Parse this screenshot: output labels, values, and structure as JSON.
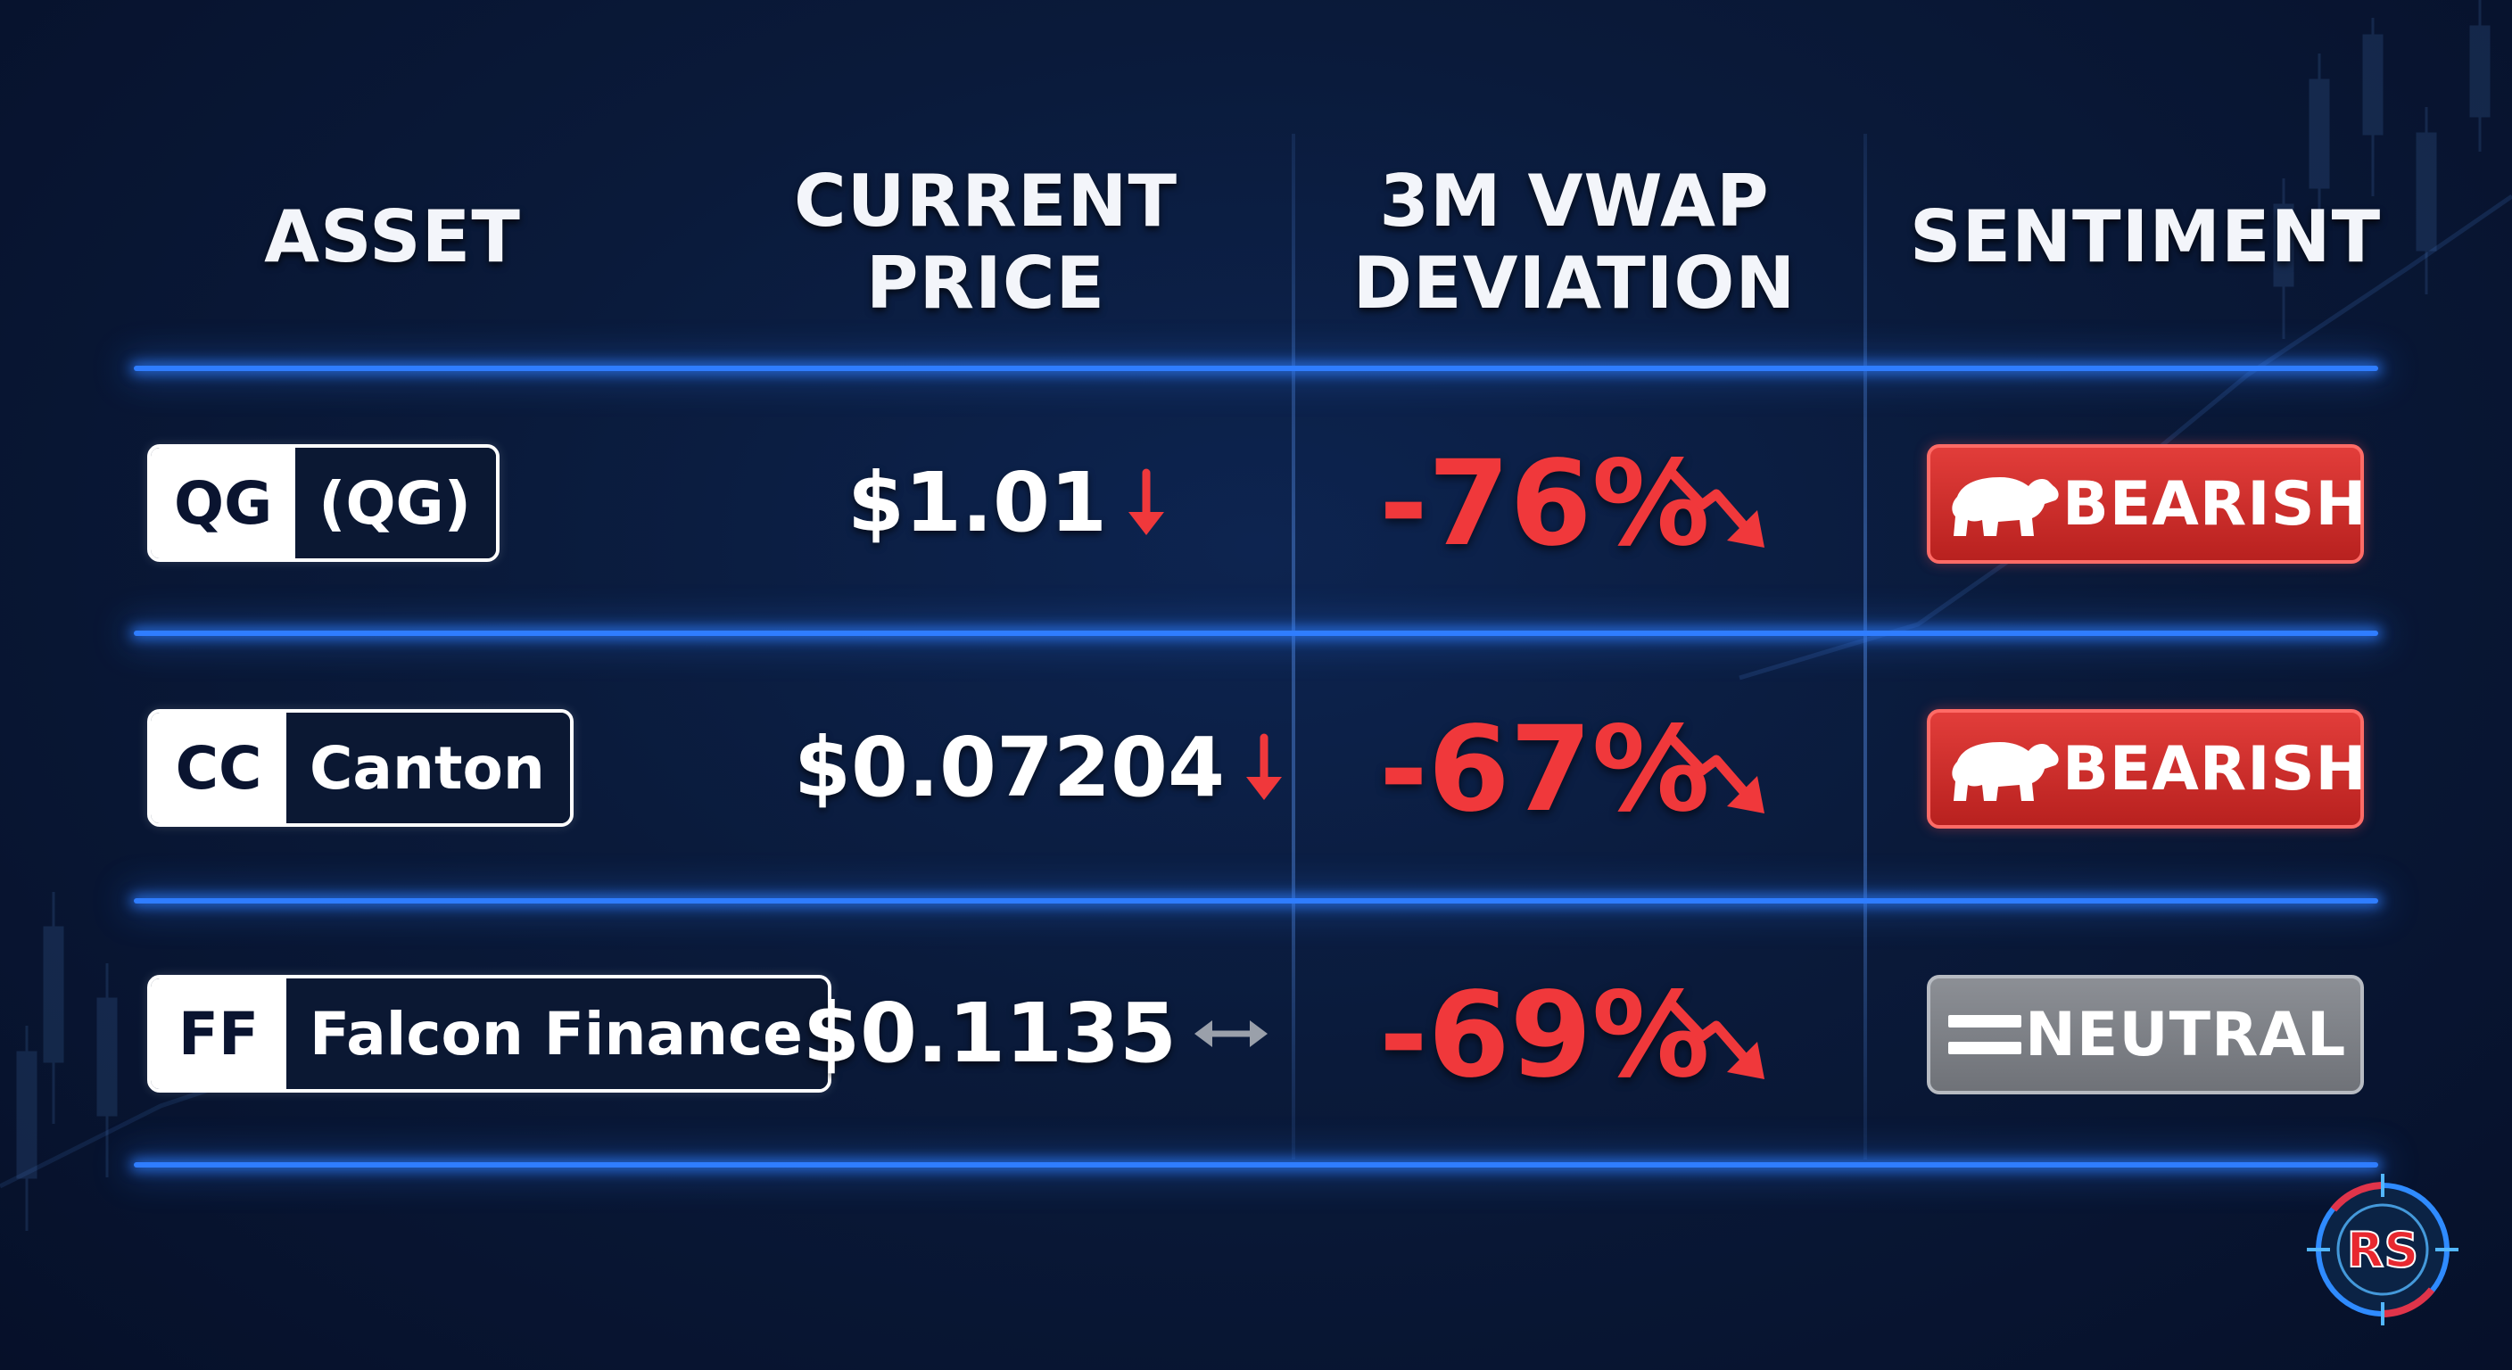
{
  "headers": {
    "asset": "ASSET",
    "price_line1": "CURRENT",
    "price_line2": "PRICE",
    "vwap_line1": "3M VWAP",
    "vwap_line2": "DEVIATION",
    "sentiment": "SENTIMENT"
  },
  "rows": [
    {
      "symbol": "QG",
      "name": "(QG)",
      "price": "$1.01",
      "price_trend": "down",
      "deviation": "-76%",
      "sentiment": "BEARISH",
      "sentiment_icon": "bear-icon"
    },
    {
      "symbol": "CC",
      "name": "Canton",
      "price": "$0.07204",
      "price_trend": "down",
      "deviation": "-67%",
      "sentiment": "BEARISH",
      "sentiment_icon": "bear-icon"
    },
    {
      "symbol": "FF",
      "name": "Falcon Finance",
      "price": "$0.1135",
      "price_trend": "sideways",
      "deviation": "-69%",
      "sentiment": "NEUTRAL",
      "sentiment_icon": "equals-icon"
    }
  ],
  "logo_text": "RS",
  "colors": {
    "background": "#0a1a3a",
    "divider_glow": "#2f7dff",
    "negative": "#f0383b",
    "bearish_badge": "#d22f2c",
    "neutral_badge": "#7f8289"
  }
}
